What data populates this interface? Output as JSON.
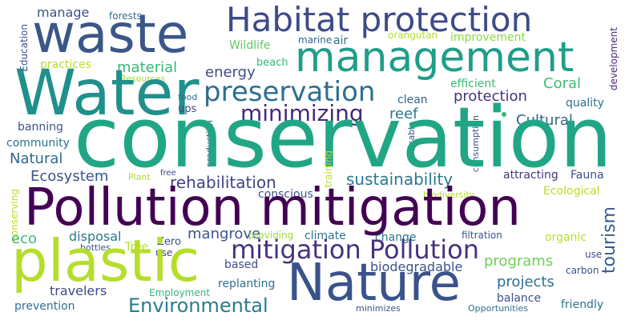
{
  "words": {
    "waste": "waste",
    "habitat_protection": "Habitat protection",
    "management": "management",
    "water": "Water",
    "conservation": "conservation",
    "pollution_mitigation": "Pollution mitigation",
    "plastic": "plastic",
    "nature": "Nature",
    "mitigation_pollution": "mitigation Pollution",
    "preservation": "preservation",
    "minimizing": "minimizing",
    "environmental": "Environmental",
    "rehabilitation": "rehabilitation",
    "sustainability": "sustainability",
    "material": "material",
    "energy": "energy",
    "ecosystem": "Ecosystem",
    "natural": "Natural",
    "mangrove": "mangrove",
    "eco": "eco",
    "coral": "Coral",
    "protection": "protection",
    "cultural": "Cultural",
    "reef": "reef",
    "programs": "programs",
    "projects": "projects",
    "tourism": "tourism",
    "manage": "manage",
    "wildlife": "Wildlife",
    "beach": "beach",
    "practices": "practices",
    "resources": "Resources",
    "food": "food",
    "ups": "ups",
    "banning": "banning",
    "community": "community",
    "forests": "forests",
    "marine": "marine",
    "air": "air",
    "orangutan": "orangutan",
    "improvement": "improvement",
    "efficient": "efficient",
    "clean": "clean",
    "quality": "quality",
    "attracting": "attracting",
    "fauna": "Fauna",
    "ecological": "Ecological",
    "biodiversity": "biodiversity",
    "plant": "Plant",
    "free": "free",
    "conscious": "conscious",
    "disposal": "disposal",
    "tree": "Tree",
    "zero": "Zero",
    "bottles": "bottles",
    "use": "use",
    "providing": "providing",
    "climate": "climate",
    "change": "change",
    "filtration": "filtration",
    "organic": "organic",
    "carbon": "carbon",
    "based": "based",
    "biodegradable": "biodegradable",
    "replanting": "replanting",
    "travelers": "travelers",
    "employment": "Employment",
    "prevention": "prevention",
    "minimizes": "minimizes",
    "opportunities": "Opportunities",
    "balance": "balance",
    "friendly": "friendly",
    "education": "Education",
    "development": "development",
    "conserving": "conserving",
    "training": "training",
    "production": "production",
    "reusable": "reusable",
    "consumption": "consumption"
  },
  "palette": {
    "background": "#ffffff",
    "dark_purple": "#440154",
    "blue": "#3b528b",
    "teal": "#21a685",
    "green": "#35b779",
    "yellow_green": "#b5de2b"
  }
}
